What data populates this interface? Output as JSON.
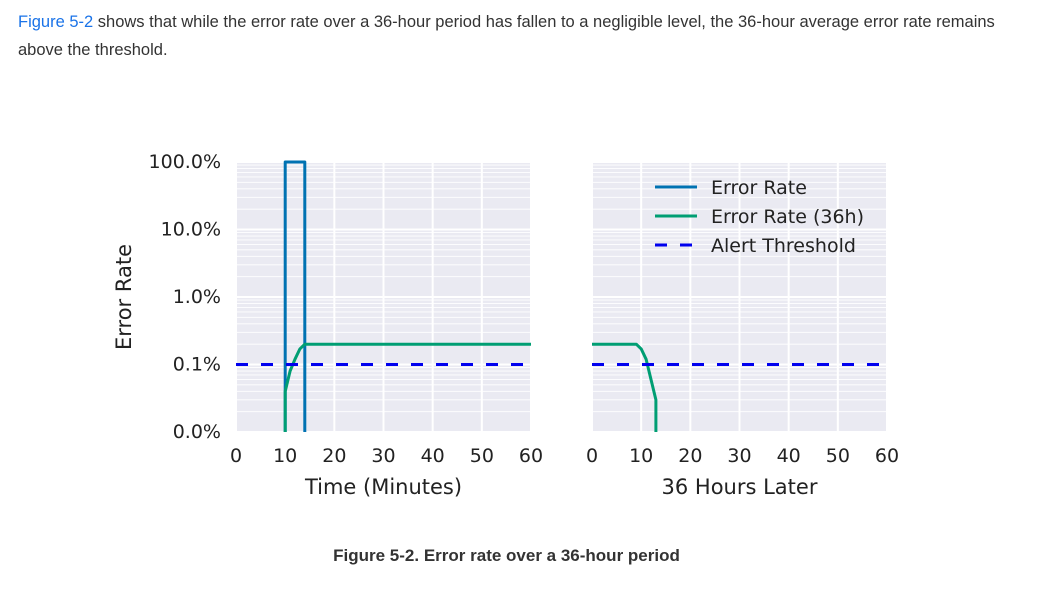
{
  "intro": {
    "link_text": "Figure 5-2",
    "text": " shows that while the error rate over a 36-hour period has fallen to a negligible level, the 36-hour average error rate remains above the threshold."
  },
  "caption": "Figure 5-2. Error rate over a 36-hour period",
  "chart_data": [
    {
      "type": "line",
      "xlabel": "Time (Minutes)",
      "ylabel": "Error Rate",
      "xlim": [
        0,
        60
      ],
      "x_ticks": [
        "0",
        "10",
        "20",
        "30",
        "40",
        "50",
        "60"
      ],
      "y_scale": "log",
      "y_ticks": [
        "100.0%",
        "10.0%",
        "1.0%",
        "0.1%",
        "0.0%"
      ],
      "grid": true,
      "series": [
        {
          "name": "Error Rate",
          "color": "#0072b2",
          "x": [
            10,
            10,
            14,
            14
          ],
          "y": [
            "0.0%",
            "100.0%",
            "100.0%",
            "0.0%"
          ]
        },
        {
          "name": "Error Rate (36h)",
          "color": "#009e73",
          "x": [
            10,
            10,
            11,
            12,
            13,
            14,
            60
          ],
          "y": [
            "0.0%",
            "0.04%",
            "0.08%",
            "0.12%",
            "0.17%",
            "0.2%",
            "0.2%"
          ]
        },
        {
          "name": "Alert Threshold",
          "color": "#0000ee",
          "style": "dashed",
          "x": [
            0,
            60
          ],
          "y": [
            "0.1%",
            "0.1%"
          ]
        }
      ]
    },
    {
      "type": "line",
      "xlabel": "36 Hours Later",
      "xlim": [
        0,
        60
      ],
      "x_ticks": [
        "0",
        "10",
        "20",
        "30",
        "40",
        "50",
        "60"
      ],
      "y_scale": "log",
      "grid": true,
      "legend": {
        "position": "top-right",
        "entries": [
          {
            "label": "Error Rate",
            "color": "#0072b2",
            "style": "solid"
          },
          {
            "label": "Error Rate (36h)",
            "color": "#009e73",
            "style": "solid"
          },
          {
            "label": "Alert Threshold",
            "color": "#0000ee",
            "style": "dashed"
          }
        ]
      },
      "series": [
        {
          "name": "Error Rate (36h)",
          "color": "#009e73",
          "x": [
            0,
            9,
            10,
            11,
            12,
            13,
            13
          ],
          "y": [
            "0.2%",
            "0.2%",
            "0.17%",
            "0.12%",
            "0.06%",
            "0.03%",
            "0.0%"
          ]
        },
        {
          "name": "Alert Threshold",
          "color": "#0000ee",
          "style": "dashed",
          "x": [
            0,
            60
          ],
          "y": [
            "0.1%",
            "0.1%"
          ]
        }
      ]
    }
  ]
}
